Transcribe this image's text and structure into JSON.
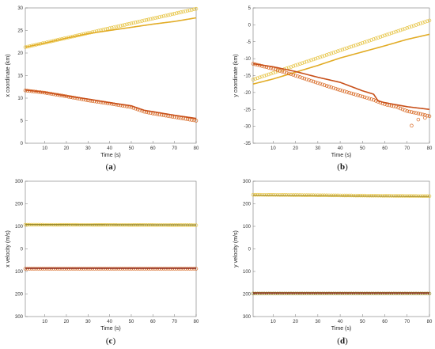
{
  "colors": {
    "yellow": "#e6c340",
    "orange": "#d7651e",
    "line_yellow": "#e2ac26",
    "line_orange": "#c8501a",
    "olive": "#9a8a2a"
  },
  "chart_data": [
    {
      "id": "a",
      "type": "line",
      "caption_letter": "a",
      "xlabel": "Time (s)",
      "ylabel": "x coordinate (km)",
      "xlim": [
        1,
        80
      ],
      "ylim": [
        0,
        30
      ],
      "xticks": [
        10,
        20,
        30,
        40,
        50,
        60,
        70,
        80
      ],
      "yticks": [
        0,
        5,
        10,
        15,
        20,
        25,
        30
      ],
      "series": [
        {
          "kind": "markers",
          "color": "#e6c340",
          "x": [
            1,
            80
          ],
          "y": [
            21.3,
            29.8
          ]
        },
        {
          "kind": "line",
          "color": "#e2ac26",
          "x": [
            1,
            10,
            20,
            30,
            40,
            50,
            60,
            70,
            80
          ],
          "y": [
            21.3,
            22.2,
            23.3,
            24.3,
            25.0,
            25.7,
            26.4,
            27.0,
            27.8
          ]
        },
        {
          "kind": "markers",
          "color": "#d7651e",
          "x": [
            1,
            10,
            20,
            30,
            40,
            50,
            56,
            60,
            70,
            80
          ],
          "y": [
            11.7,
            11.2,
            10.4,
            9.5,
            8.8,
            8.0,
            7.0,
            6.6,
            5.8,
            5.0
          ]
        },
        {
          "kind": "line",
          "color": "#c8501a",
          "x": [
            1,
            10,
            20,
            30,
            40,
            50,
            56,
            60,
            70,
            80
          ],
          "y": [
            11.8,
            11.3,
            10.5,
            9.8,
            9.0,
            8.3,
            7.3,
            7.0,
            6.2,
            5.5
          ]
        }
      ]
    },
    {
      "id": "b",
      "type": "line",
      "caption_letter": "b",
      "xlabel": "Time (s)",
      "ylabel": "y coordinate (km)",
      "xlim": [
        1,
        80
      ],
      "ylim": [
        -35,
        5
      ],
      "xticks": [
        10,
        20,
        30,
        40,
        50,
        60,
        70,
        80
      ],
      "yticks": [
        5,
        0,
        -5,
        -10,
        -15,
        -20,
        -25,
        -30,
        -35
      ],
      "series": [
        {
          "kind": "markers",
          "color": "#e6c340",
          "x": [
            1,
            80
          ],
          "y": [
            -16.2,
            1.3
          ]
        },
        {
          "kind": "line",
          "color": "#e2ac26",
          "x": [
            1,
            10,
            20,
            30,
            40,
            50,
            60,
            70,
            80
          ],
          "y": [
            -17.5,
            -16.0,
            -14.0,
            -12.0,
            -9.8,
            -8.0,
            -6.2,
            -4.3,
            -2.8
          ]
        },
        {
          "kind": "markers",
          "color": "#d7651e",
          "x": [
            1,
            10,
            20,
            30,
            40,
            50,
            55,
            60,
            65,
            70,
            75,
            80
          ],
          "y": [
            -11.5,
            -13.0,
            -15.0,
            -17.2,
            -19.3,
            -21.2,
            -22.2,
            -23.5,
            -24.2,
            -25.5,
            -26.2,
            -27.0
          ]
        },
        {
          "kind": "line",
          "color": "#c8501a",
          "x": [
            1,
            10,
            20,
            30,
            40,
            50,
            55,
            57,
            60,
            70,
            80
          ],
          "y": [
            -11.5,
            -12.4,
            -13.8,
            -15.5,
            -17.0,
            -19.5,
            -20.5,
            -22.5,
            -23.0,
            -24.2,
            -25.0
          ]
        },
        {
          "kind": "outliers",
          "color": "#d7651e",
          "x": [
            72,
            75,
            78
          ],
          "y": [
            -29.8,
            -28.0,
            -27.5
          ]
        }
      ]
    },
    {
      "id": "c",
      "type": "line",
      "caption_letter": "c",
      "xlabel": "Time (s)",
      "ylabel": "x velocity (m/s)",
      "xlim": [
        1,
        80
      ],
      "ylim": [
        -300,
        300
      ],
      "xticks": [
        10,
        20,
        30,
        40,
        50,
        60,
        70,
        80
      ],
      "yticks": [
        300,
        200,
        100,
        0,
        100,
        200,
        300
      ],
      "series": [
        {
          "kind": "markers",
          "color": "#e6c340",
          "x": [
            1,
            80
          ],
          "y": [
            107,
            105
          ]
        },
        {
          "kind": "line",
          "color": "#9a8a2a",
          "x": [
            1,
            80
          ],
          "y": [
            108,
            106
          ]
        },
        {
          "kind": "markers",
          "color": "#d7651e",
          "x": [
            1,
            80
          ],
          "y": [
            -88,
            -88
          ]
        },
        {
          "kind": "line",
          "color": "#8a2a20",
          "x": [
            1,
            80
          ],
          "y": [
            -86,
            -86
          ]
        }
      ]
    },
    {
      "id": "d",
      "type": "line",
      "caption_letter": "d",
      "xlabel": "Time (s)",
      "ylabel": "y velocity (m/s)",
      "xlim": [
        1,
        80
      ],
      "ylim": [
        -300,
        300
      ],
      "xticks": [
        10,
        20,
        30,
        40,
        50,
        60,
        70,
        80
      ],
      "yticks": [
        300,
        200,
        100,
        0,
        100,
        200,
        300
      ],
      "series": [
        {
          "kind": "markers",
          "color": "#e6c340",
          "x": [
            1,
            80
          ],
          "y": [
            240,
            234
          ]
        },
        {
          "kind": "line",
          "color": "#b8a040",
          "x": [
            1,
            80
          ],
          "y": [
            238,
            232
          ]
        },
        {
          "kind": "markers",
          "color": "#9a8a2a",
          "x": [
            1,
            80
          ],
          "y": [
            -198,
            -198
          ]
        },
        {
          "kind": "line",
          "color": "#8a2a20",
          "x": [
            1,
            80
          ],
          "y": [
            -196,
            -196
          ]
        }
      ]
    }
  ]
}
